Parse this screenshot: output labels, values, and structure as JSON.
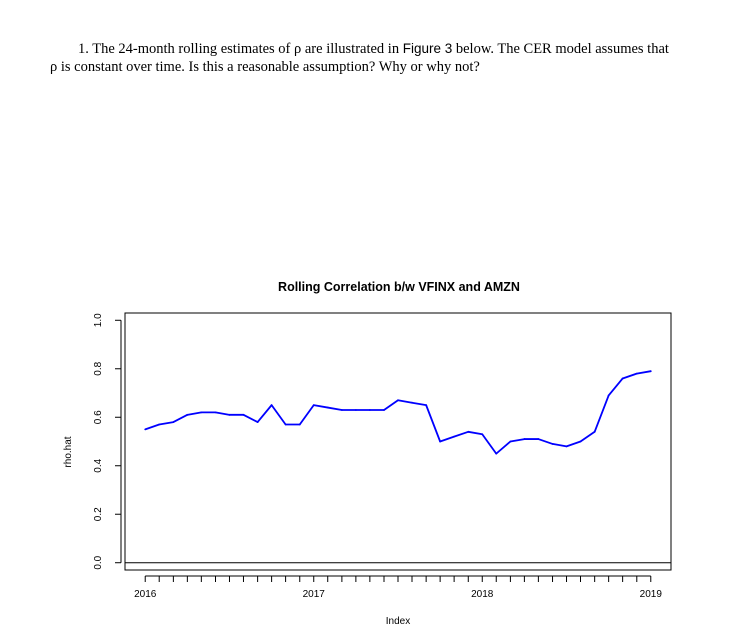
{
  "question": {
    "number": "1.",
    "text_part1": "The 24-month rolling estimates of ρ are illustrated in",
    "figure_ref": "Figure 3",
    "text_part2": "below. The CER model assumes that",
    "text_line2": "ρ is constant over time. Is this a reasonable assumption? Why or why not?"
  },
  "chart_data": {
    "type": "line",
    "title": "Rolling Correlation b/w VFINX and AMZN",
    "xlabel": "Index",
    "ylabel": "rho.hat",
    "xlim": [
      2015.88,
      2019.12
    ],
    "ylim": [
      -0.03,
      1.03
    ],
    "x_ticks": [
      2016,
      2017,
      2018,
      2019
    ],
    "x_tick_labels": [
      "2016",
      "2017",
      "2018",
      "2019"
    ],
    "y_ticks": [
      0.0,
      0.2,
      0.4,
      0.6,
      0.8,
      1.0
    ],
    "y_tick_labels": [
      "0.0",
      "0.2",
      "0.4",
      "0.6",
      "0.8",
      "1.0"
    ],
    "hline": 0.0,
    "line_color": "#0000ff",
    "x": [
      2016.0,
      2016.083,
      2016.167,
      2016.25,
      2016.333,
      2016.417,
      2016.5,
      2016.583,
      2016.667,
      2016.75,
      2016.833,
      2016.917,
      2017.0,
      2017.083,
      2017.167,
      2017.25,
      2017.333,
      2017.417,
      2017.5,
      2017.583,
      2017.667,
      2017.75,
      2017.833,
      2017.917,
      2018.0,
      2018.083,
      2018.167,
      2018.25,
      2018.333,
      2018.417,
      2018.5,
      2018.583,
      2018.667,
      2018.75,
      2018.833,
      2018.917,
      2019.0
    ],
    "values": [
      0.55,
      0.57,
      0.58,
      0.61,
      0.62,
      0.62,
      0.61,
      0.61,
      0.58,
      0.65,
      0.57,
      0.57,
      0.65,
      0.64,
      0.63,
      0.63,
      0.63,
      0.63,
      0.67,
      0.66,
      0.65,
      0.5,
      0.52,
      0.54,
      0.53,
      0.45,
      0.5,
      0.51,
      0.51,
      0.49,
      0.48,
      0.5,
      0.54,
      0.69,
      0.76,
      0.78,
      0.79
    ]
  }
}
